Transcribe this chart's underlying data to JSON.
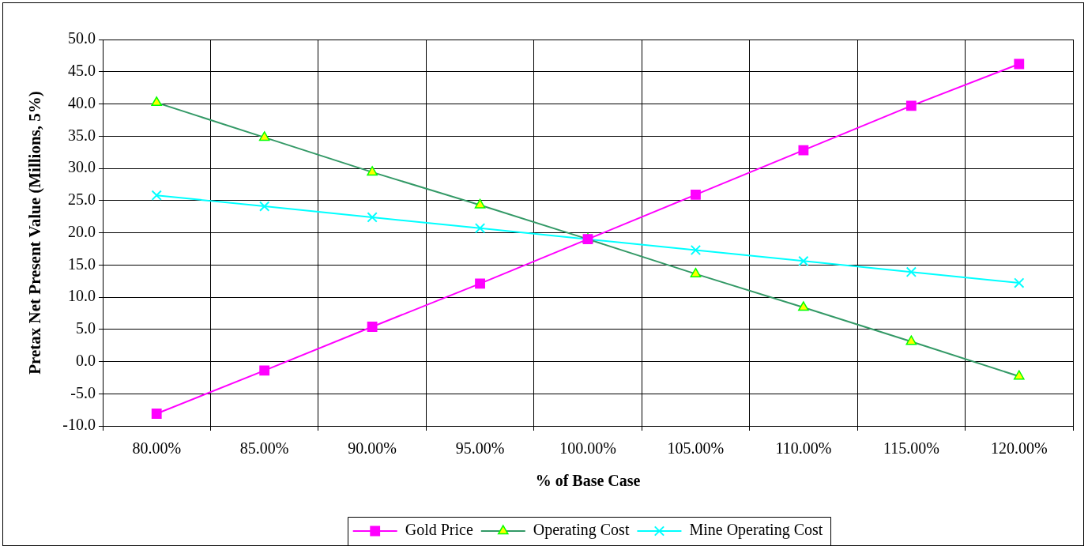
{
  "chart_data": {
    "type": "line",
    "xlabel": "% of Base Case",
    "ylabel": "Pretax Net Present Value (Millions, 5%)",
    "categories": [
      "80.00%",
      "85.00%",
      "90.00%",
      "95.00%",
      "100.00%",
      "105.00%",
      "110.00%",
      "115.00%",
      "120.00%"
    ],
    "series": [
      {
        "name": "Gold Price",
        "color": "#ff00ff",
        "marker": "square",
        "values": [
          -8.1,
          -1.4,
          5.4,
          12.1,
          19.0,
          25.9,
          32.8,
          39.7,
          46.2
        ]
      },
      {
        "name": "Operating Cost",
        "color": "#339966",
        "marker": "triangle",
        "values": [
          40.2,
          34.8,
          29.4,
          24.3,
          19.0,
          13.6,
          8.4,
          3.1,
          -2.3
        ]
      },
      {
        "name": "Mine Operating Cost",
        "color": "#00ffff",
        "marker": "cross",
        "values": [
          25.8,
          24.1,
          22.4,
          20.7,
          19.0,
          17.3,
          15.6,
          13.9,
          12.2
        ]
      }
    ],
    "ylim": [
      -10,
      50
    ],
    "yticks": [
      {
        "value": -10,
        "label": "-10.0"
      },
      {
        "value": -5,
        "label": "-5.0"
      },
      {
        "value": 0,
        "label": "0.0"
      },
      {
        "value": 5,
        "label": "5.0"
      },
      {
        "value": 10,
        "label": "10.0"
      },
      {
        "value": 15,
        "label": "15.0"
      },
      {
        "value": 20,
        "label": "20.0"
      },
      {
        "value": 25,
        "label": "25.0"
      },
      {
        "value": 30,
        "label": "30.0"
      },
      {
        "value": 35,
        "label": "35.0"
      },
      {
        "value": 40,
        "label": "40.0"
      },
      {
        "value": 45,
        "label": "45.0"
      },
      {
        "value": 50,
        "label": "50.0"
      }
    ],
    "grid": true,
    "legend": "bottom"
  }
}
